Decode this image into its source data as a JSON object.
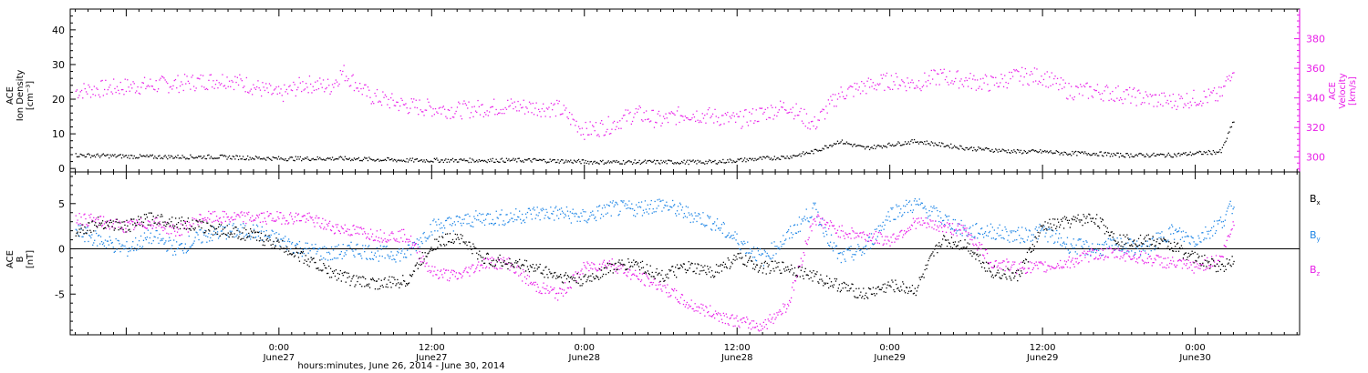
{
  "colors": {
    "black": "#000000",
    "magenta": "#e81ee8",
    "blue": "#1e86e6"
  },
  "xaxis": {
    "label": "hours:minutes, June 26, 2014 - June 30, 2014",
    "range_hours": [
      -16.4,
      80.2
    ],
    "ticks": [
      {
        "hour": 0,
        "time": "0:00",
        "day": "June27"
      },
      {
        "hour": 12,
        "time": "12:00",
        "day": "June27"
      },
      {
        "hour": 24,
        "time": "0:00",
        "day": "June28"
      },
      {
        "hour": 36,
        "time": "12:00",
        "day": "June28"
      },
      {
        "hour": 48,
        "time": "0:00",
        "day": "June29"
      },
      {
        "hour": 60,
        "time": "12:00",
        "day": "June29"
      },
      {
        "hour": 72,
        "time": "0:00",
        "day": "June30"
      }
    ]
  },
  "chart_data": [
    {
      "type": "scatter",
      "panel": "top",
      "left_axis": {
        "label_lines": [
          "ACE",
          "Ion Density",
          "[cm⁻³]"
        ],
        "range": [
          -1,
          46
        ],
        "ticks": [
          0,
          10,
          20,
          30,
          40
        ]
      },
      "right_axis": {
        "label_lines": [
          "ACE",
          "Velocity",
          "[km/s]"
        ],
        "range": [
          290,
          400
        ],
        "ticks": [
          300,
          320,
          340,
          360,
          380
        ],
        "color": "magenta"
      },
      "series": [
        {
          "axis": "left",
          "color": "black",
          "x": [
            -16,
            -10,
            -5,
            0,
            5,
            10,
            15,
            20,
            25,
            30,
            34,
            36,
            38,
            40,
            42,
            44,
            46,
            48,
            50,
            52,
            54,
            56,
            58,
            60,
            62,
            64,
            66,
            68,
            70,
            72,
            74,
            75
          ],
          "y": [
            4,
            3.5,
            3.5,
            3,
            3,
            2.5,
            2.5,
            2.5,
            2,
            2,
            2,
            2.5,
            3,
            3.5,
            5,
            8,
            6,
            7,
            8,
            7,
            6,
            5.5,
            5,
            5,
            4.5,
            4.5,
            4,
            4,
            4,
            4.5,
            5,
            14
          ]
        },
        {
          "axis": "right",
          "color": "magenta",
          "x": [
            -16,
            -12,
            -8,
            -4,
            -2,
            0,
            2,
            4,
            5,
            7,
            10,
            14,
            18,
            22,
            24,
            26,
            28,
            30,
            32,
            34,
            36,
            38,
            40,
            42,
            44,
            46,
            48,
            50,
            52,
            54,
            56,
            58,
            60,
            62,
            64,
            66,
            68,
            70,
            72,
            74,
            75
          ],
          "y": [
            345,
            348,
            350,
            353,
            348,
            342,
            350,
            348,
            358,
            342,
            335,
            332,
            335,
            333,
            318,
            322,
            330,
            325,
            330,
            328,
            325,
            330,
            335,
            322,
            343,
            348,
            352,
            350,
            355,
            352,
            350,
            355,
            355,
            345,
            345,
            343,
            340,
            338,
            340,
            342,
            363
          ]
        }
      ]
    },
    {
      "type": "scatter",
      "panel": "bottom",
      "left_axis": {
        "label_lines": [
          "ACE",
          "B",
          "[nT]"
        ],
        "range": [
          -9.5,
          8.5
        ],
        "ticks": [
          -5,
          0,
          5
        ]
      },
      "zero_line": true,
      "legend": [
        {
          "text": "B",
          "sub": "x",
          "color": "black"
        },
        {
          "text": "B",
          "sub": "y",
          "color": "blue"
        },
        {
          "text": "B",
          "sub": "z",
          "color": "magenta"
        }
      ],
      "series": [
        {
          "name": "Bx",
          "color": "black",
          "x": [
            -16,
            -14,
            -12,
            -10,
            -8,
            -6,
            -4,
            -2,
            0,
            2,
            4,
            6,
            8,
            10,
            12,
            14,
            16,
            18,
            20,
            22,
            24,
            26,
            28,
            30,
            32,
            34,
            36,
            38,
            40,
            42,
            44,
            46,
            48,
            50,
            52,
            54,
            56,
            58,
            60,
            62,
            64,
            66,
            68,
            70,
            72,
            74,
            75
          ],
          "y": [
            2,
            3,
            2.5,
            3.5,
            3,
            2.5,
            2,
            1.5,
            0.5,
            -1,
            -2.5,
            -3.5,
            -3.8,
            -3.5,
            0.5,
            1.5,
            -1,
            -1.5,
            -2,
            -3,
            -3.5,
            -2,
            -1.5,
            -3,
            -2,
            -2.5,
            -1,
            -2,
            -2,
            -3,
            -4,
            -5,
            -4,
            -4.5,
            1,
            0.5,
            -2.5,
            -3,
            2.5,
            3,
            3.5,
            1,
            1,
            0.5,
            -1,
            -2,
            -1
          ]
        },
        {
          "name": "By",
          "color": "blue",
          "x": [
            -16,
            -14,
            -12,
            -10,
            -8,
            -6,
            -4,
            -2,
            0,
            2,
            4,
            6,
            8,
            10,
            12,
            14,
            16,
            18,
            20,
            22,
            24,
            26,
            28,
            30,
            32,
            34,
            36,
            38,
            40,
            42,
            44,
            46,
            48,
            50,
            52,
            54,
            56,
            58,
            60,
            62,
            64,
            66,
            68,
            70,
            72,
            74,
            75
          ],
          "y": [
            2,
            1,
            0,
            1.5,
            0,
            1.5,
            2,
            2,
            1,
            0,
            -0.5,
            0,
            -0.5,
            -0.5,
            2.5,
            3,
            3.5,
            3.5,
            4,
            4,
            3.5,
            4.5,
            4.5,
            5,
            4,
            3,
            1,
            -1,
            1.5,
            4.5,
            -1,
            0,
            4,
            5,
            3.5,
            2,
            2,
            1.5,
            2,
            0.5,
            0,
            0.5,
            0,
            2,
            1,
            3,
            5
          ]
        },
        {
          "name": "Bz",
          "color": "magenta",
          "x": [
            -16,
            -14,
            -12,
            -10,
            -8,
            -6,
            -4,
            -2,
            0,
            2,
            4,
            6,
            8,
            10,
            12,
            14,
            16,
            18,
            20,
            22,
            24,
            26,
            28,
            30,
            32,
            34,
            36,
            38,
            40,
            42,
            44,
            46,
            48,
            50,
            52,
            54,
            56,
            58,
            60,
            62,
            64,
            66,
            68,
            70,
            72,
            74,
            75
          ],
          "y": [
            3.5,
            3,
            2.5,
            3,
            2,
            3.5,
            3.5,
            3.5,
            3.5,
            3.5,
            2.5,
            2,
            1.5,
            1.5,
            -2.5,
            -3,
            -1.5,
            -1.5,
            -4,
            -5,
            -2,
            -1.5,
            -3,
            -4,
            -6,
            -7,
            -8,
            -8.5,
            -6,
            3.5,
            2,
            1.5,
            1,
            3,
            2.5,
            2,
            -1.5,
            -2,
            -2,
            -1.5,
            -0.5,
            -0.5,
            -1,
            -1.5,
            -2,
            -1,
            3
          ]
        }
      ]
    }
  ]
}
